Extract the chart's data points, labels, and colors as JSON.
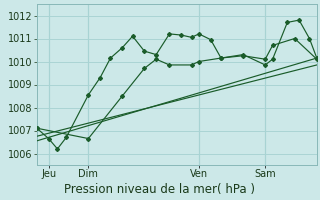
{
  "background_color": "#cce8e8",
  "grid_color": "#aad4d4",
  "line_color": "#1a5c2a",
  "title": "Pression niveau de la mer( hPa )",
  "title_fontsize": 8.5,
  "ylim": [
    1005.5,
    1012.5
  ],
  "yticks": [
    1006,
    1007,
    1008,
    1009,
    1010,
    1011,
    1012
  ],
  "xlim": [
    0,
    19
  ],
  "xtick_positions": [
    0.8,
    3.5,
    11.0,
    15.5
  ],
  "xtick_labels": [
    "Jeu",
    "Dim",
    "Ven",
    "Sam"
  ],
  "vline_positions": [
    0.8,
    3.5,
    11.0,
    15.5
  ],
  "line1_x": [
    0,
    0.8,
    1.4,
    2.0,
    3.5,
    4.3,
    5.0,
    5.8,
    6.5,
    7.3,
    8.1,
    9.0,
    9.8,
    10.5,
    11.0,
    11.8,
    12.5,
    14.0,
    15.5,
    16.0,
    17.0,
    17.8,
    18.5,
    19.0
  ],
  "line1_y": [
    1007.1,
    1006.65,
    1006.2,
    1006.7,
    1008.55,
    1009.3,
    1010.15,
    1010.6,
    1011.1,
    1010.45,
    1010.3,
    1011.2,
    1011.15,
    1011.05,
    1011.2,
    1010.95,
    1010.15,
    1010.3,
    1009.85,
    1010.1,
    1011.7,
    1011.8,
    1011.0,
    1010.15
  ],
  "line2_x": [
    0,
    3.5,
    5.8,
    7.3,
    8.1,
    9.0,
    10.5,
    11.0,
    12.5,
    14.0,
    15.5,
    16.0,
    17.5,
    19.0
  ],
  "line2_y": [
    1007.1,
    1006.65,
    1008.5,
    1009.7,
    1010.1,
    1009.85,
    1009.85,
    1010.0,
    1010.15,
    1010.25,
    1010.1,
    1010.7,
    1011.0,
    1010.1
  ],
  "line3_x": [
    0,
    19
  ],
  "line3_y": [
    1006.75,
    1009.85
  ],
  "line4_x": [
    0,
    19
  ],
  "line4_y": [
    1006.55,
    1010.15
  ]
}
